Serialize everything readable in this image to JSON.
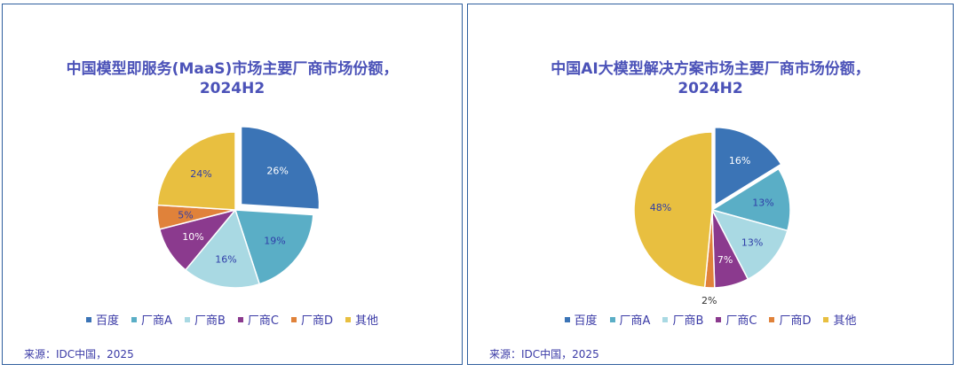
{
  "chart_data": [
    {
      "type": "pie",
      "title_lines": [
        "中国模型即服务(MaaS)市场主要厂商市场份额，",
        "2024H2"
      ],
      "categories": [
        "百度",
        "厂商A",
        "厂商B",
        "厂商C",
        "厂商D",
        "其他"
      ],
      "values": [
        26,
        19,
        16,
        10,
        5,
        24
      ],
      "labels": [
        "26%",
        "19%",
        "16%",
        "10%",
        "5%",
        "24%"
      ],
      "exploded_index": 0,
      "source": "来源：IDC中国，2025"
    },
    {
      "type": "pie",
      "title_lines": [
        "中国AI大模型解决方案市场主要厂商市场份额，",
        "2024H2"
      ],
      "categories": [
        "百度",
        "厂商A",
        "厂商B",
        "厂商C",
        "厂商D",
        "其他"
      ],
      "values": [
        16,
        13,
        13,
        7,
        2,
        48
      ],
      "labels": [
        "16%",
        "13%",
        "13%",
        "7%",
        "2%",
        "48%"
      ],
      "exploded_index": 0,
      "source": "来源：IDC中国，2025"
    }
  ],
  "colors": [
    "#3b74b6",
    "#5aaec6",
    "#a9d9e3",
    "#8b3a8e",
    "#e0823a",
    "#e8bf40"
  ],
  "label_colors": [
    "#ffffff",
    "#2f3ea8",
    "#2f3ea8",
    "#ffffff",
    "#2f3ea8",
    "#2f3ea8"
  ]
}
